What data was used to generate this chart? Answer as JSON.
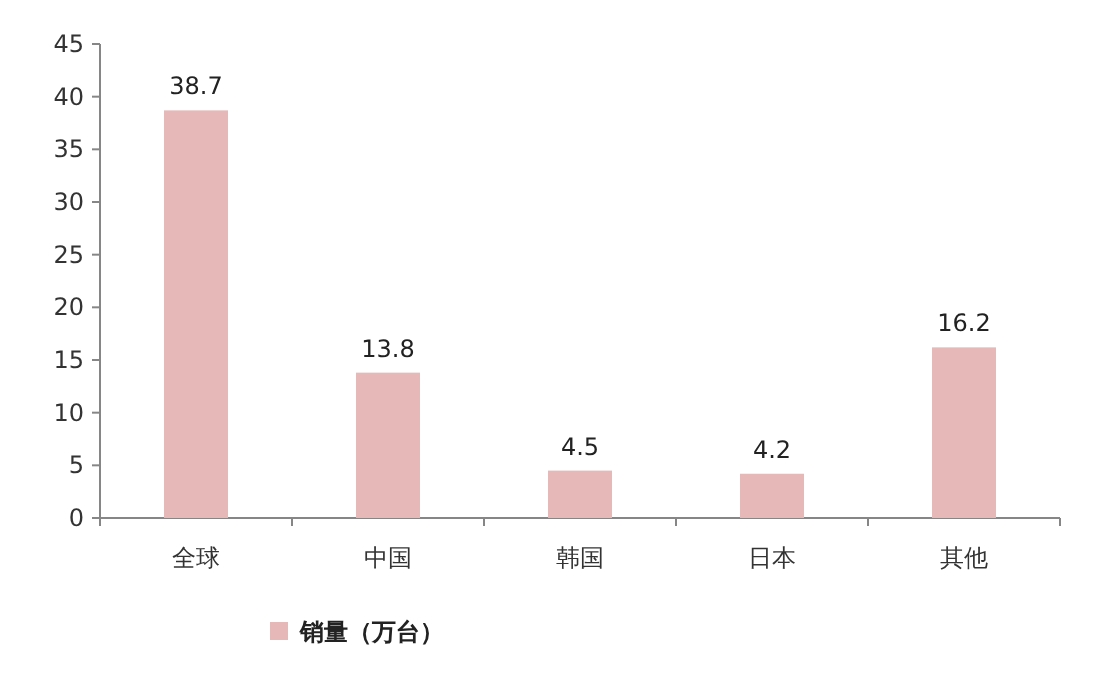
{
  "chart_data": {
    "type": "bar",
    "categories": [
      "全球",
      "中国",
      "韩国",
      "日本",
      "其他"
    ],
    "series": [
      {
        "name": "销量（万台）",
        "color": "#e6b9b8",
        "values": [
          38.7,
          13.8,
          4.5,
          4.2,
          16.2
        ]
      }
    ],
    "ylim": [
      0,
      45
    ],
    "yticks": [
      0,
      5,
      10,
      15,
      20,
      25,
      30,
      35,
      40,
      45
    ],
    "data_labels": true,
    "legend": "bottom",
    "grid": false
  }
}
